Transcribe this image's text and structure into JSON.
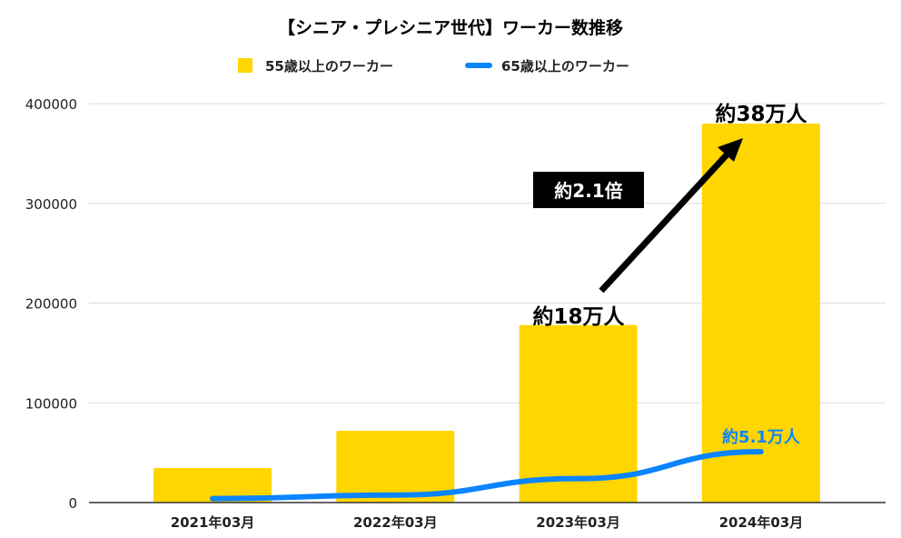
{
  "chart_data": {
    "type": "bar",
    "title": "【シニア・プレシニア世代】ワーカー数推移",
    "categories": [
      "2021年03月",
      "2022年03月",
      "2023年03月",
      "2024年03月"
    ],
    "series": [
      {
        "name": "55歳以上のワーカー",
        "type": "bar",
        "color": "#FFD600",
        "values": [
          34600,
          72000,
          178000,
          380000
        ]
      },
      {
        "name": "65歳以上のワーカー",
        "type": "line",
        "color": "#0A84FF",
        "values": [
          4000,
          7500,
          24000,
          51000
        ]
      }
    ],
    "ylim": [
      0,
      400000
    ],
    "yticks": [
      "0",
      "100000",
      "200000",
      "300000",
      "400000"
    ],
    "grid": true,
    "legend": "top",
    "annotations": {
      "bar_2023": "約18万人",
      "bar_2024": "約38万人",
      "growth": "約2.1倍",
      "line_2024": "約5.1万人"
    }
  }
}
